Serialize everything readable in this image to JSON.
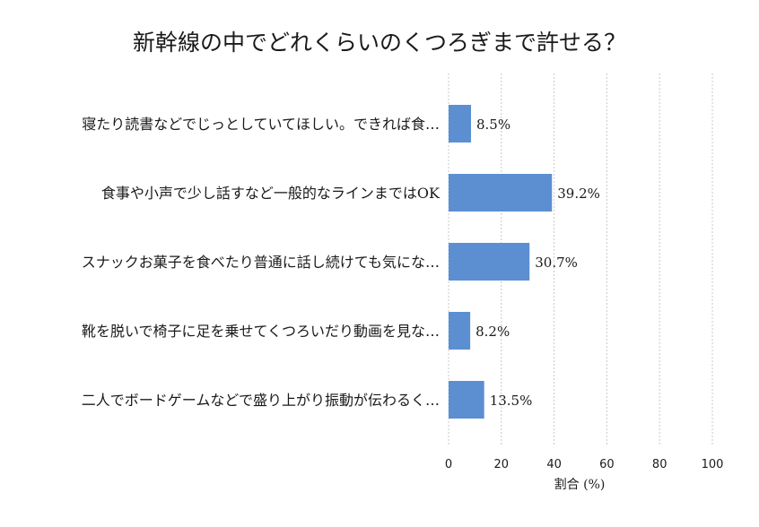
{
  "chart_data": {
    "type": "bar",
    "orientation": "horizontal",
    "title": "新幹線の中でどれくらいのくつろぎまで許せる？",
    "xlabel": "割合 (%)",
    "ylabel": "",
    "xlim": [
      0,
      100
    ],
    "xticks": [
      0,
      20,
      40,
      60,
      80,
      100
    ],
    "grid": "x-dashed",
    "bar_color": "#5b8fd1",
    "categories": [
      "寝たり読書などでじっとしていてほしい。できれば食…",
      "食事や小声で少し話すなど一般的なラインまではOK",
      "スナックお菓子を食べたり普通に話し続けても気にな…",
      "靴を脱いで椅子に足を乗せてくつろいだり動画を見な…",
      "二人でボードゲームなどで盛り上がり振動が伝わるく…"
    ],
    "values": [
      8.5,
      39.2,
      30.7,
      8.2,
      13.5
    ],
    "value_labels": [
      "8.5%",
      "39.2%",
      "30.7%",
      "8.2%",
      "13.5%"
    ]
  }
}
